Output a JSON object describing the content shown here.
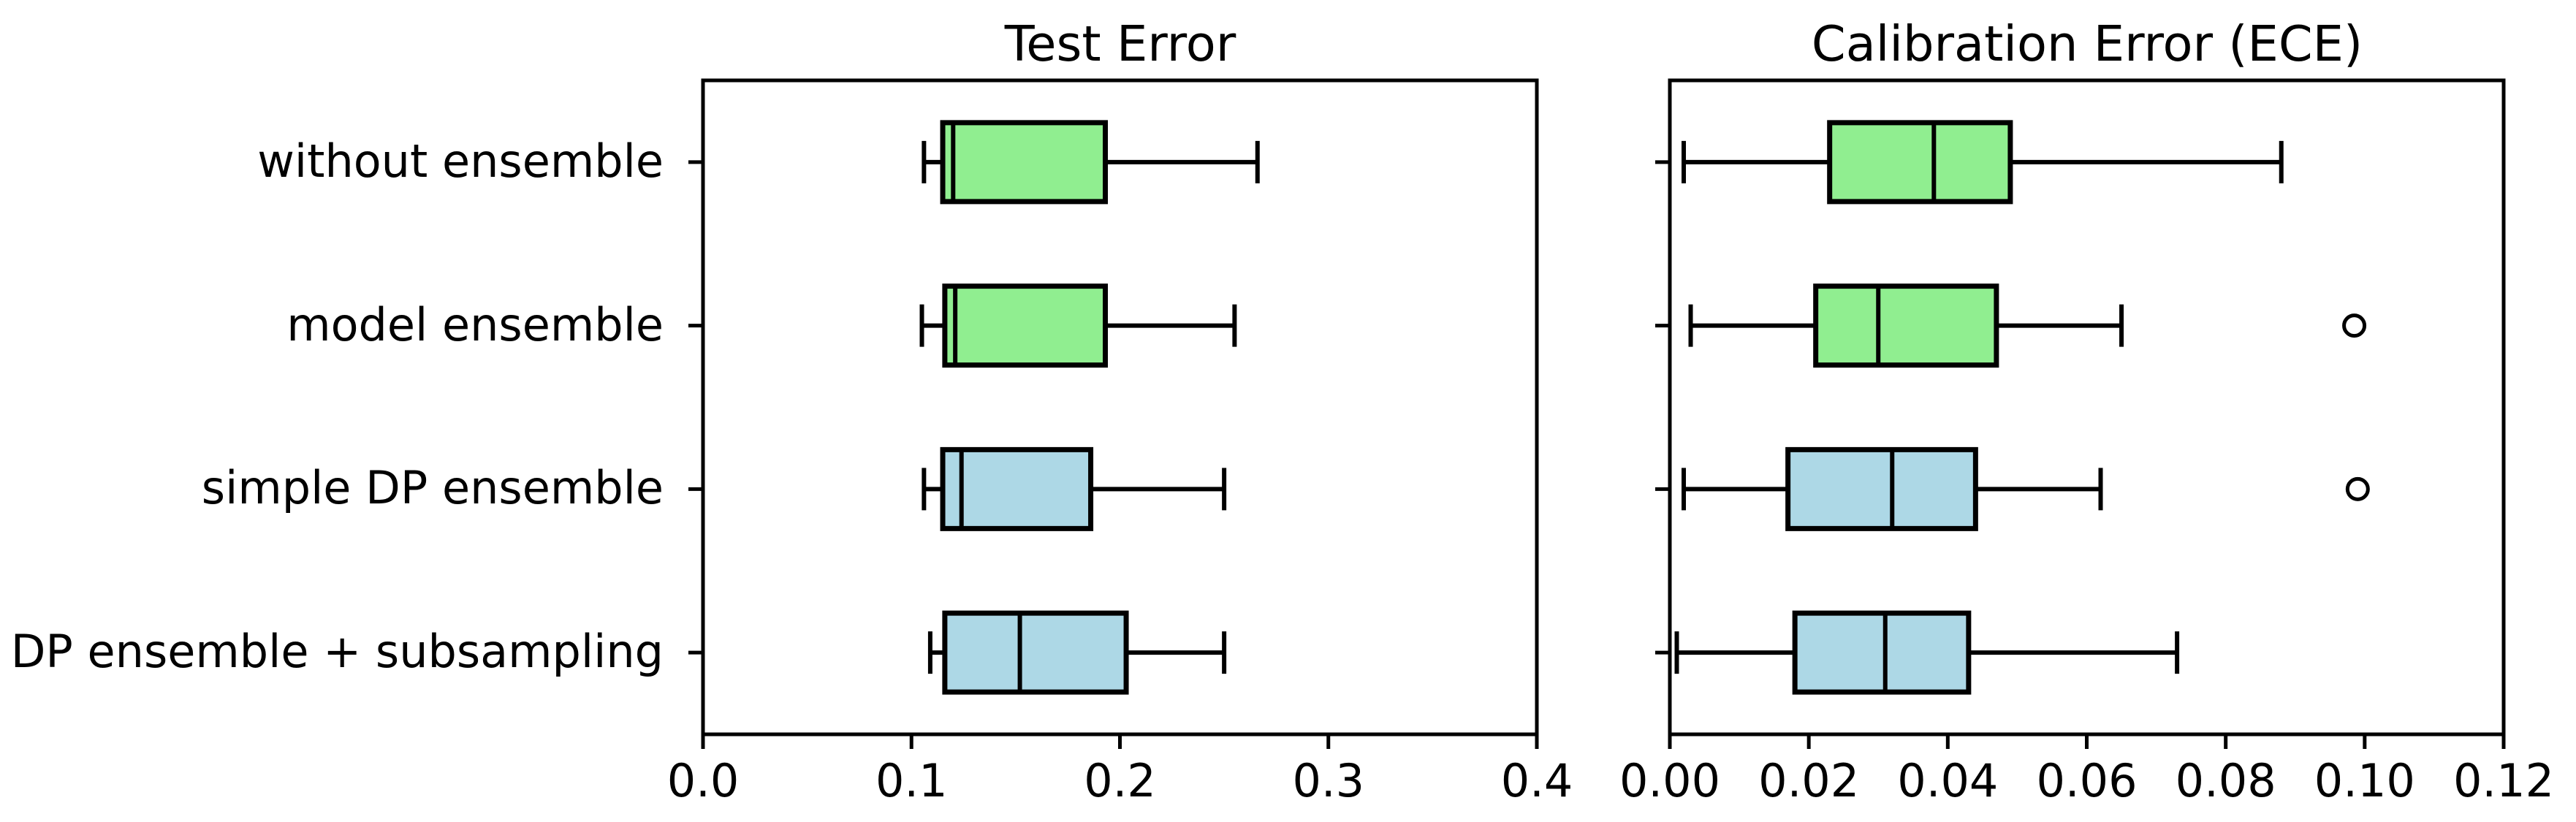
{
  "figure": {
    "background": "#ffffff",
    "text_color": "#000000",
    "line_color": "#000000"
  },
  "colors": {
    "green_box": "#90EE90",
    "blue_box": "#ADD8E6",
    "edge": "#000000"
  },
  "categories": [
    "without ensemble",
    "model ensemble",
    "simple DP ensemble",
    "DP ensemble + subsampling"
  ],
  "chart_data": [
    {
      "type": "boxplot",
      "orientation": "horizontal",
      "title": "Test Error",
      "xlabel": "",
      "ylabel": "",
      "xlim": [
        0.0,
        0.4
      ],
      "xtick_labels": [
        "0.0",
        "0.1",
        "0.2",
        "0.3",
        "0.4"
      ],
      "xtick_values": [
        0.0,
        0.1,
        0.2,
        0.3,
        0.4
      ],
      "grid": false,
      "legend": false,
      "categories": [
        "without ensemble",
        "model ensemble",
        "simple DP ensemble",
        "DP ensemble + subsampling"
      ],
      "boxes": [
        {
          "label": "without ensemble",
          "color": "#90EE90",
          "whislo": 0.106,
          "q1": 0.115,
          "med": 0.12,
          "q3": 0.193,
          "whishi": 0.266,
          "fliers": []
        },
        {
          "label": "model ensemble",
          "color": "#90EE90",
          "whislo": 0.105,
          "q1": 0.116,
          "med": 0.121,
          "q3": 0.193,
          "whishi": 0.255,
          "fliers": []
        },
        {
          "label": "simple DP ensemble",
          "color": "#ADD8E6",
          "whislo": 0.106,
          "q1": 0.115,
          "med": 0.124,
          "q3": 0.186,
          "whishi": 0.25,
          "fliers": []
        },
        {
          "label": "DP ensemble + subsampling",
          "color": "#ADD8E6",
          "whislo": 0.109,
          "q1": 0.116,
          "med": 0.152,
          "q3": 0.203,
          "whishi": 0.25,
          "fliers": []
        }
      ]
    },
    {
      "type": "boxplot",
      "orientation": "horizontal",
      "title": "Calibration Error (ECE)",
      "xlabel": "",
      "ylabel": "",
      "xlim": [
        0.0,
        0.12
      ],
      "xtick_labels": [
        "0.00",
        "0.02",
        "0.04",
        "0.06",
        "0.08",
        "0.10",
        "0.12"
      ],
      "xtick_values": [
        0.0,
        0.02,
        0.04,
        0.06,
        0.08,
        0.1,
        0.12
      ],
      "grid": false,
      "legend": false,
      "categories": [
        "without ensemble",
        "model ensemble",
        "simple DP ensemble",
        "DP ensemble + subsampling"
      ],
      "boxes": [
        {
          "label": "without ensemble",
          "color": "#90EE90",
          "whislo": 0.002,
          "q1": 0.023,
          "med": 0.038,
          "q3": 0.049,
          "whishi": 0.088,
          "fliers": []
        },
        {
          "label": "model ensemble",
          "color": "#90EE90",
          "whislo": 0.003,
          "q1": 0.021,
          "med": 0.03,
          "q3": 0.047,
          "whishi": 0.065,
          "fliers": [
            0.0985
          ]
        },
        {
          "label": "simple DP ensemble",
          "color": "#ADD8E6",
          "whislo": 0.002,
          "q1": 0.017,
          "med": 0.032,
          "q3": 0.044,
          "whishi": 0.062,
          "fliers": [
            0.099
          ]
        },
        {
          "label": "DP ensemble + subsampling",
          "color": "#ADD8E6",
          "whislo": 0.001,
          "q1": 0.018,
          "med": 0.031,
          "q3": 0.043,
          "whishi": 0.073,
          "fliers": []
        }
      ]
    }
  ]
}
